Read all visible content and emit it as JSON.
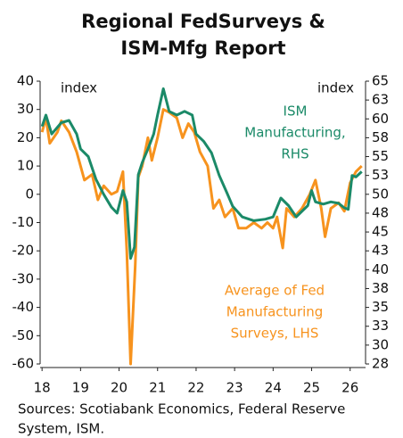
{
  "chart_data": {
    "type": "line",
    "title": [
      "Regional FedSurveys &",
      "ISM-Mfg Report"
    ],
    "y_label": "index",
    "y2_label": "index",
    "annotations": [
      {
        "lines": [
          "ISM",
          "Manufacturing,",
          "RHS"
        ],
        "color": "#1b8a68"
      },
      {
        "lines": [
          "Average of Fed",
          "Manufacturing",
          "Surveys, LHS"
        ],
        "color": "#f7931e"
      }
    ],
    "source": [
      "Sources: Scotiabank Economics, Federal Reserve",
      "System, ISM."
    ],
    "xlim": [
      2017.95,
      2026.4
    ],
    "xticks": [
      {
        "value": 2018,
        "label": "18"
      },
      {
        "value": 2019,
        "label": "19"
      },
      {
        "value": 2020,
        "label": "20"
      },
      {
        "value": 2021,
        "label": "21"
      },
      {
        "value": 2022,
        "label": "22"
      },
      {
        "value": 2023,
        "label": "23"
      },
      {
        "value": 2024,
        "label": "24"
      },
      {
        "value": 2025,
        "label": "25"
      },
      {
        "value": 2026,
        "label": "26"
      }
    ],
    "ylim": [
      -60,
      40
    ],
    "yticks": [
      -60,
      -50,
      -40,
      -30,
      -20,
      -10,
      0,
      10,
      20,
      30,
      40
    ],
    "y2lim": [
      27.5,
      65
    ],
    "y2ticks": [
      {
        "value": 27.5,
        "label": "28"
      },
      30,
      {
        "value": 32.5,
        "label": "33"
      },
      35,
      {
        "value": 37.5,
        "label": "38"
      },
      40,
      {
        "value": 42.5,
        "label": "43"
      },
      45,
      {
        "value": 47.5,
        "label": "48"
      },
      50,
      {
        "value": 52.5,
        "label": "53"
      },
      55,
      {
        "value": 57.5,
        "label": "58"
      },
      60,
      {
        "value": 62.5,
        "label": "63"
      },
      65
    ],
    "series": [
      {
        "name": "ISM Manufacturing",
        "color": "#1b8a68",
        "axis": "y2",
        "x": [
          2018.0,
          2018.1,
          2018.25,
          2018.5,
          2018.7,
          2018.9,
          2019.0,
          2019.2,
          2019.4,
          2019.6,
          2019.8,
          2019.95,
          2020.1,
          2020.2,
          2020.3,
          2020.4,
          2020.5,
          2020.6,
          2020.75,
          2020.9,
          2021.0,
          2021.15,
          2021.3,
          2021.5,
          2021.7,
          2021.9,
          2022.0,
          2022.2,
          2022.4,
          2022.6,
          2022.8,
          2022.95,
          2023.2,
          2023.5,
          2023.8,
          2024.0,
          2024.2,
          2024.4,
          2024.6,
          2024.9,
          2025.0,
          2025.1,
          2025.3,
          2025.5,
          2025.7,
          2025.85,
          2025.95,
          2026.05,
          2026.15,
          2026.3
        ],
        "values": [
          59,
          60.5,
          58,
          59.5,
          59.8,
          58,
          56,
          55,
          52,
          50,
          48.3,
          47.5,
          50.5,
          49,
          41.5,
          43,
          52.6,
          54.2,
          56,
          58,
          60.5,
          64,
          61,
          60.5,
          61,
          60.5,
          58,
          57,
          55.5,
          52.5,
          50.2,
          48.4,
          47,
          46.5,
          46.7,
          47,
          49.5,
          48.5,
          47,
          48.5,
          50.5,
          49,
          48.7,
          49,
          48.8,
          48.2,
          48,
          52.5,
          52.3,
          53
        ]
      },
      {
        "name": "Average of Fed Manufacturing Surveys",
        "color": "#f7931e",
        "axis": "y",
        "x": [
          2018.0,
          2018.1,
          2018.2,
          2018.4,
          2018.5,
          2018.7,
          2018.9,
          2019.1,
          2019.3,
          2019.45,
          2019.6,
          2019.8,
          2019.95,
          2020.1,
          2020.2,
          2020.3,
          2020.42,
          2020.5,
          2020.6,
          2020.75,
          2020.85,
          2021.0,
          2021.15,
          2021.3,
          2021.5,
          2021.65,
          2021.8,
          2021.95,
          2022.1,
          2022.3,
          2022.45,
          2022.6,
          2022.75,
          2022.95,
          2023.1,
          2023.3,
          2023.5,
          2023.7,
          2023.85,
          2024.0,
          2024.1,
          2024.25,
          2024.35,
          2024.55,
          2024.75,
          2024.95,
          2025.1,
          2025.25,
          2025.35,
          2025.5,
          2025.7,
          2025.85,
          2026.0,
          2026.15,
          2026.3
        ],
        "values": [
          22,
          27,
          18,
          22,
          26,
          22,
          15,
          5,
          7,
          -2,
          3,
          0,
          1,
          8,
          -20,
          -60,
          -25,
          6,
          10,
          20,
          12,
          20,
          30,
          29,
          27,
          20,
          25,
          22,
          15,
          10,
          -5,
          -2,
          -8,
          -5,
          -12,
          -12,
          -10,
          -12,
          -10,
          -12,
          -8,
          -19,
          -5,
          -8,
          -5,
          0,
          5,
          -5,
          -15,
          -5,
          -3,
          -6,
          4,
          8,
          10
        ]
      }
    ]
  }
}
